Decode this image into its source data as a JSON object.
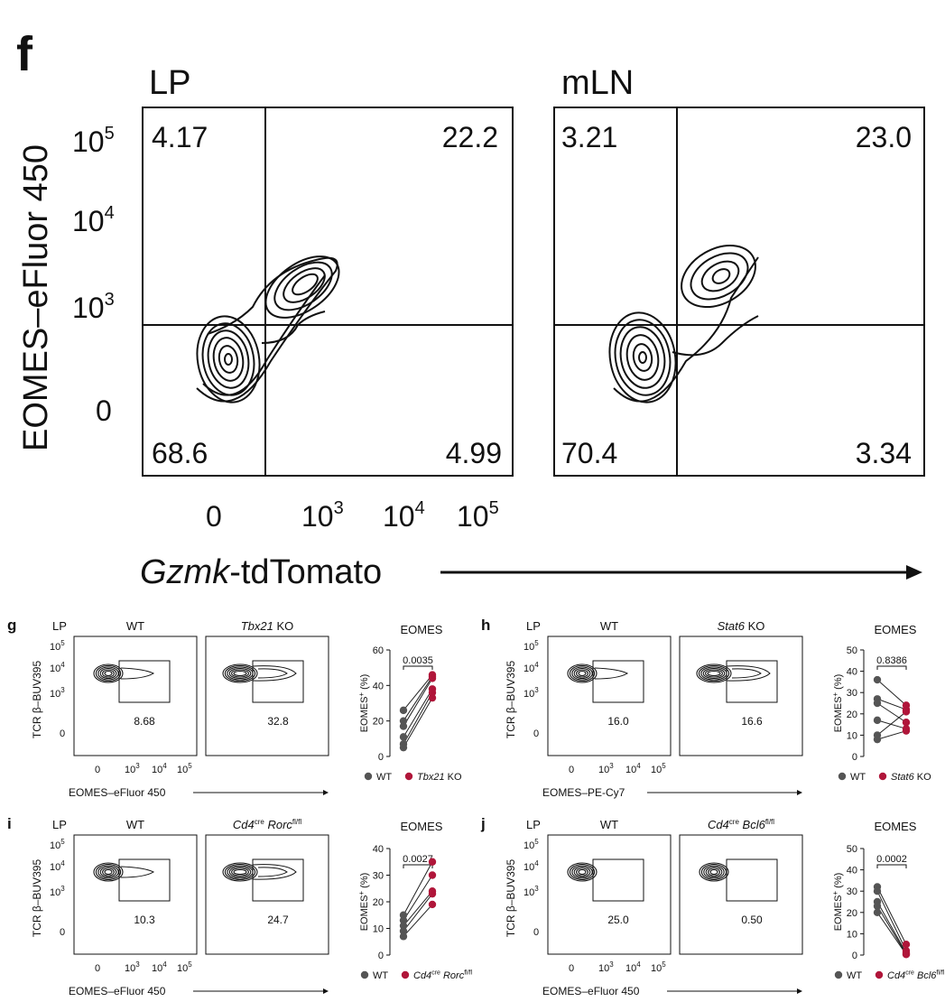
{
  "panel_f": {
    "letter": "f",
    "y_label": "EOMES–eFluor 450",
    "x_label_italic": "Gzmk",
    "x_label_rest": "-tdTomato",
    "y_ticks": [
      {
        "base": "10",
        "exp": "5"
      },
      {
        "base": "10",
        "exp": "4"
      },
      {
        "base": "10",
        "exp": "3"
      },
      {
        "base": "0",
        "exp": ""
      }
    ],
    "x_ticks": [
      {
        "base": "0",
        "exp": ""
      },
      {
        "base": "10",
        "exp": "3"
      },
      {
        "base": "10",
        "exp": "4"
      },
      {
        "base": "10",
        "exp": "5"
      }
    ],
    "plots": [
      {
        "title": "LP",
        "ul": "4.17",
        "ur": "22.2",
        "ll": "68.6",
        "lr": "4.99"
      },
      {
        "title": "mLN",
        "ul": "3.21",
        "ur": "23.0",
        "ll": "70.4",
        "lr": "3.34"
      }
    ]
  },
  "small_panels": [
    {
      "letter": "g",
      "tissue": "LP",
      "y_label": "TCR β–BUV395",
      "x_label": "EOMES–eFluor 450",
      "wt_title": "WT",
      "ko_title_italic": "Tbx21",
      "ko_title_rest": " KO",
      "ko_title_sup": "",
      "wt_gate": "8.68",
      "ko_gate": "32.8",
      "y_ticks": [
        "10",
        "10",
        "10",
        "0"
      ],
      "y_exps": [
        "5",
        "4",
        "3",
        ""
      ],
      "x_ticks": [
        "0",
        "10",
        "10",
        "10"
      ],
      "x_exps": [
        "",
        "3",
        "4",
        "5"
      ],
      "stat_title": "EOMES",
      "stat_ylabel": "EOMES",
      "stat_ylabel_sup": "+",
      "stat_ylabel_unit": " (%)",
      "p_value": "0.0035",
      "legend_wt": "WT",
      "legend_ko_italic": "Tbx21",
      "legend_ko_rest": " KO",
      "legend_ko_sup": ""
    },
    {
      "letter": "h",
      "tissue": "LP",
      "y_label": "TCR β–BUV395",
      "x_label": "EOMES–PE-Cy7",
      "wt_title": "WT",
      "ko_title_italic": "Stat6",
      "ko_title_rest": " KO",
      "ko_title_sup": "",
      "wt_gate": "16.0",
      "ko_gate": "16.6",
      "y_ticks": [
        "10",
        "10",
        "10",
        "0"
      ],
      "y_exps": [
        "5",
        "4",
        "3",
        ""
      ],
      "x_ticks": [
        "0",
        "10",
        "10",
        "10"
      ],
      "x_exps": [
        "",
        "3",
        "4",
        "5"
      ],
      "stat_title": "EOMES",
      "stat_ylabel": "EOMES",
      "stat_ylabel_sup": "+",
      "stat_ylabel_unit": " (%)",
      "p_value": "0.8386",
      "legend_wt": "WT",
      "legend_ko_italic": "Stat6",
      "legend_ko_rest": " KO",
      "legend_ko_sup": ""
    },
    {
      "letter": "i",
      "tissue": "LP",
      "y_label": "TCR β–BUV395",
      "x_label": "EOMES–eFluor 450",
      "wt_title": "WT",
      "ko_title_italic": "Cd4",
      "ko_title_sup": "cre",
      "ko_title_rest": " Rorc",
      "ko_title_sup2": "fl/fl",
      "wt_gate": "10.3",
      "ko_gate": "24.7",
      "y_ticks": [
        "10",
        "10",
        "10",
        "0"
      ],
      "y_exps": [
        "5",
        "4",
        "3",
        ""
      ],
      "x_ticks": [
        "0",
        "10",
        "10",
        "10"
      ],
      "x_exps": [
        "",
        "3",
        "4",
        "5"
      ],
      "stat_title": "EOMES",
      "stat_ylabel": "EOMES",
      "stat_ylabel_sup": "+",
      "stat_ylabel_unit": " (%)",
      "p_value": "0.0027",
      "legend_wt": "WT",
      "legend_ko_italic": "Cd4",
      "legend_ko_sup": "cre",
      "legend_ko_rest": " Rorc",
      "legend_ko_sup2": "fl/fl"
    },
    {
      "letter": "j",
      "tissue": "LP",
      "y_label": "TCR β–BUV395",
      "x_label": "EOMES–eFluor 450",
      "wt_title": "WT",
      "ko_title_italic": "Cd4",
      "ko_title_sup": "cre",
      "ko_title_rest": " Bcl6",
      "ko_title_sup2": "fl/fl",
      "wt_gate": "25.0",
      "ko_gate": "0.50",
      "y_ticks": [
        "10",
        "10",
        "10",
        "0"
      ],
      "y_exps": [
        "5",
        "4",
        "3",
        ""
      ],
      "x_ticks": [
        "0",
        "10",
        "10",
        "10"
      ],
      "x_exps": [
        "",
        "3",
        "4",
        "5"
      ],
      "stat_title": "EOMES",
      "stat_ylabel": "EOMES",
      "stat_ylabel_sup": "+",
      "stat_ylabel_unit": " (%)",
      "p_value": "0.0002",
      "legend_wt": "WT",
      "legend_ko_italic": "Cd4",
      "legend_ko_sup": "cre",
      "legend_ko_rest": " Bcl6",
      "legend_ko_sup2": "fl/fl"
    }
  ],
  "chart_data": [
    {
      "type": "scatter",
      "title": "EOMES",
      "panel": "g",
      "ylabel": "EOMES+ (%)",
      "ylim": [
        0,
        60
      ],
      "yticks": [
        0,
        20,
        40,
        60
      ],
      "categories": [
        "WT",
        "Tbx21 KO"
      ],
      "pairs": [
        [
          26,
          46
        ],
        [
          20,
          45
        ],
        [
          17,
          44
        ],
        [
          11,
          38
        ],
        [
          7,
          36
        ],
        [
          5,
          33
        ]
      ],
      "colors": {
        "wt": "#555555",
        "ko": "#b0163a"
      }
    },
    {
      "type": "scatter",
      "title": "EOMES",
      "panel": "h",
      "ylabel": "EOMES+ (%)",
      "ylim": [
        0,
        50
      ],
      "yticks": [
        0,
        10,
        20,
        30,
        40,
        50
      ],
      "categories": [
        "WT",
        "Stat6 KO"
      ],
      "pairs": [
        [
          36,
          24
        ],
        [
          27,
          22
        ],
        [
          25,
          16
        ],
        [
          17,
          13
        ],
        [
          10,
          21
        ],
        [
          8,
          12
        ]
      ],
      "colors": {
        "wt": "#555555",
        "ko": "#b0163a"
      }
    },
    {
      "type": "scatter",
      "title": "EOMES",
      "panel": "i",
      "ylabel": "EOMES+ (%)",
      "ylim": [
        0,
        40
      ],
      "yticks": [
        0,
        10,
        20,
        30,
        40
      ],
      "categories": [
        "WT",
        "Cd4cre Rorcfl/fl"
      ],
      "pairs": [
        [
          15,
          35
        ],
        [
          13,
          30
        ],
        [
          11,
          24
        ],
        [
          9,
          23
        ],
        [
          7,
          19
        ]
      ],
      "colors": {
        "wt": "#555555",
        "ko": "#b0163a"
      }
    },
    {
      "type": "scatter",
      "title": "EOMES",
      "panel": "j",
      "ylabel": "EOMES+ (%)",
      "ylim": [
        0,
        50
      ],
      "yticks": [
        0,
        10,
        20,
        30,
        40,
        50
      ],
      "categories": [
        "WT",
        "Cd4cre Bcl6fl/fl"
      ],
      "pairs": [
        [
          32,
          5
        ],
        [
          30,
          2
        ],
        [
          25,
          1
        ],
        [
          23,
          0.5
        ],
        [
          20,
          0.3
        ]
      ],
      "colors": {
        "wt": "#555555",
        "ko": "#b0163a"
      }
    }
  ]
}
